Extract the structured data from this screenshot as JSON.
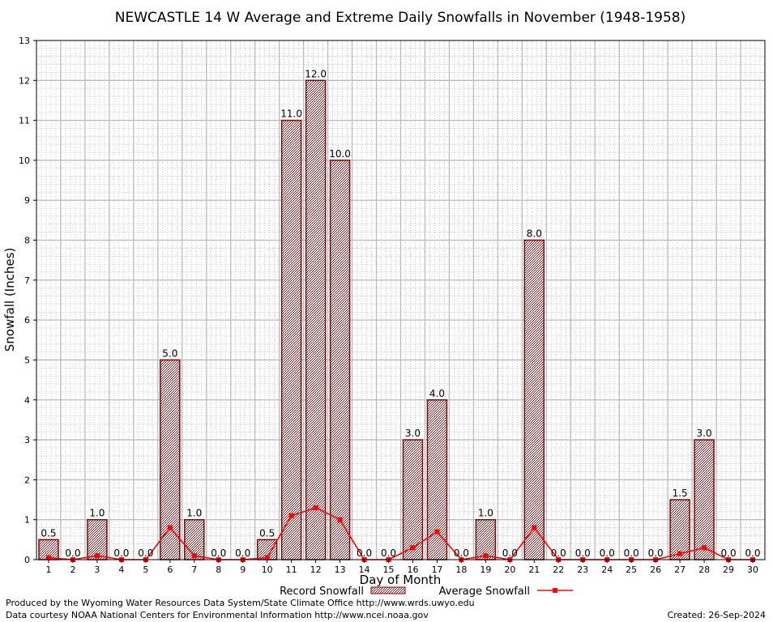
{
  "chart_data": {
    "type": "bar",
    "title": "NEWCASTLE 14 W Average and Extreme Daily Snowfalls in November (1948-1958)",
    "xlabel": "Day of Month",
    "ylabel": "Snowfall (Inches)",
    "ylim": [
      0,
      13
    ],
    "yticks": [
      "0",
      "1",
      "2",
      "3",
      "4",
      "5",
      "6",
      "7",
      "8",
      "9",
      "10",
      "11",
      "12",
      "13"
    ],
    "grid": true,
    "categories": [
      "1",
      "2",
      "3",
      "4",
      "5",
      "6",
      "7",
      "8",
      "9",
      "10",
      "11",
      "12",
      "13",
      "14",
      "15",
      "16",
      "17",
      "18",
      "19",
      "20",
      "21",
      "22",
      "23",
      "24",
      "25",
      "26",
      "27",
      "28",
      "29",
      "30"
    ],
    "series": [
      {
        "name": "Record Snowfall",
        "kind": "bar",
        "color": "#8b0000",
        "values": [
          0.5,
          0.0,
          1.0,
          0.0,
          0.0,
          5.0,
          1.0,
          0.0,
          0.0,
          0.5,
          11.0,
          12.0,
          10.0,
          0.0,
          0.0,
          3.0,
          4.0,
          0.0,
          1.0,
          0.0,
          8.0,
          0.0,
          0.0,
          0.0,
          0.0,
          0.0,
          1.5,
          3.0,
          0.0,
          0.0
        ],
        "labels": [
          "0.5",
          "0.0",
          "1.0",
          "0.0",
          "0.0",
          "5.0",
          "1.0",
          "0.0",
          "0.0",
          "0.5",
          "11.0",
          "12.0",
          "10.0",
          "0.0",
          "0.0",
          "3.0",
          "4.0",
          "0.0",
          "1.0",
          "0.0",
          "8.0",
          "0.0",
          "0.0",
          "0.0",
          "0.0",
          "0.0",
          "1.5",
          "3.0",
          "0.0",
          "0.0"
        ]
      },
      {
        "name": "Average Snowfall",
        "kind": "line",
        "color": "#ff0000",
        "values": [
          0.05,
          0.0,
          0.1,
          0.0,
          0.0,
          0.8,
          0.1,
          0.0,
          0.0,
          0.05,
          1.1,
          1.3,
          1.0,
          0.0,
          0.0,
          0.3,
          0.7,
          0.0,
          0.1,
          0.0,
          0.8,
          0.0,
          0.0,
          0.0,
          0.0,
          0.0,
          0.15,
          0.3,
          0.0,
          0.0
        ]
      }
    ],
    "legend_position": "bottom-center"
  },
  "footer": {
    "line1": "Produced by the Wyoming Water Resources Data System/State Climate Office http://www.wrds.uwyo.edu",
    "line2": "Data courtesy NOAA National Centers for Environmental Information http://www.ncei.noaa.gov",
    "created": "Created: 26-Sep-2024"
  }
}
